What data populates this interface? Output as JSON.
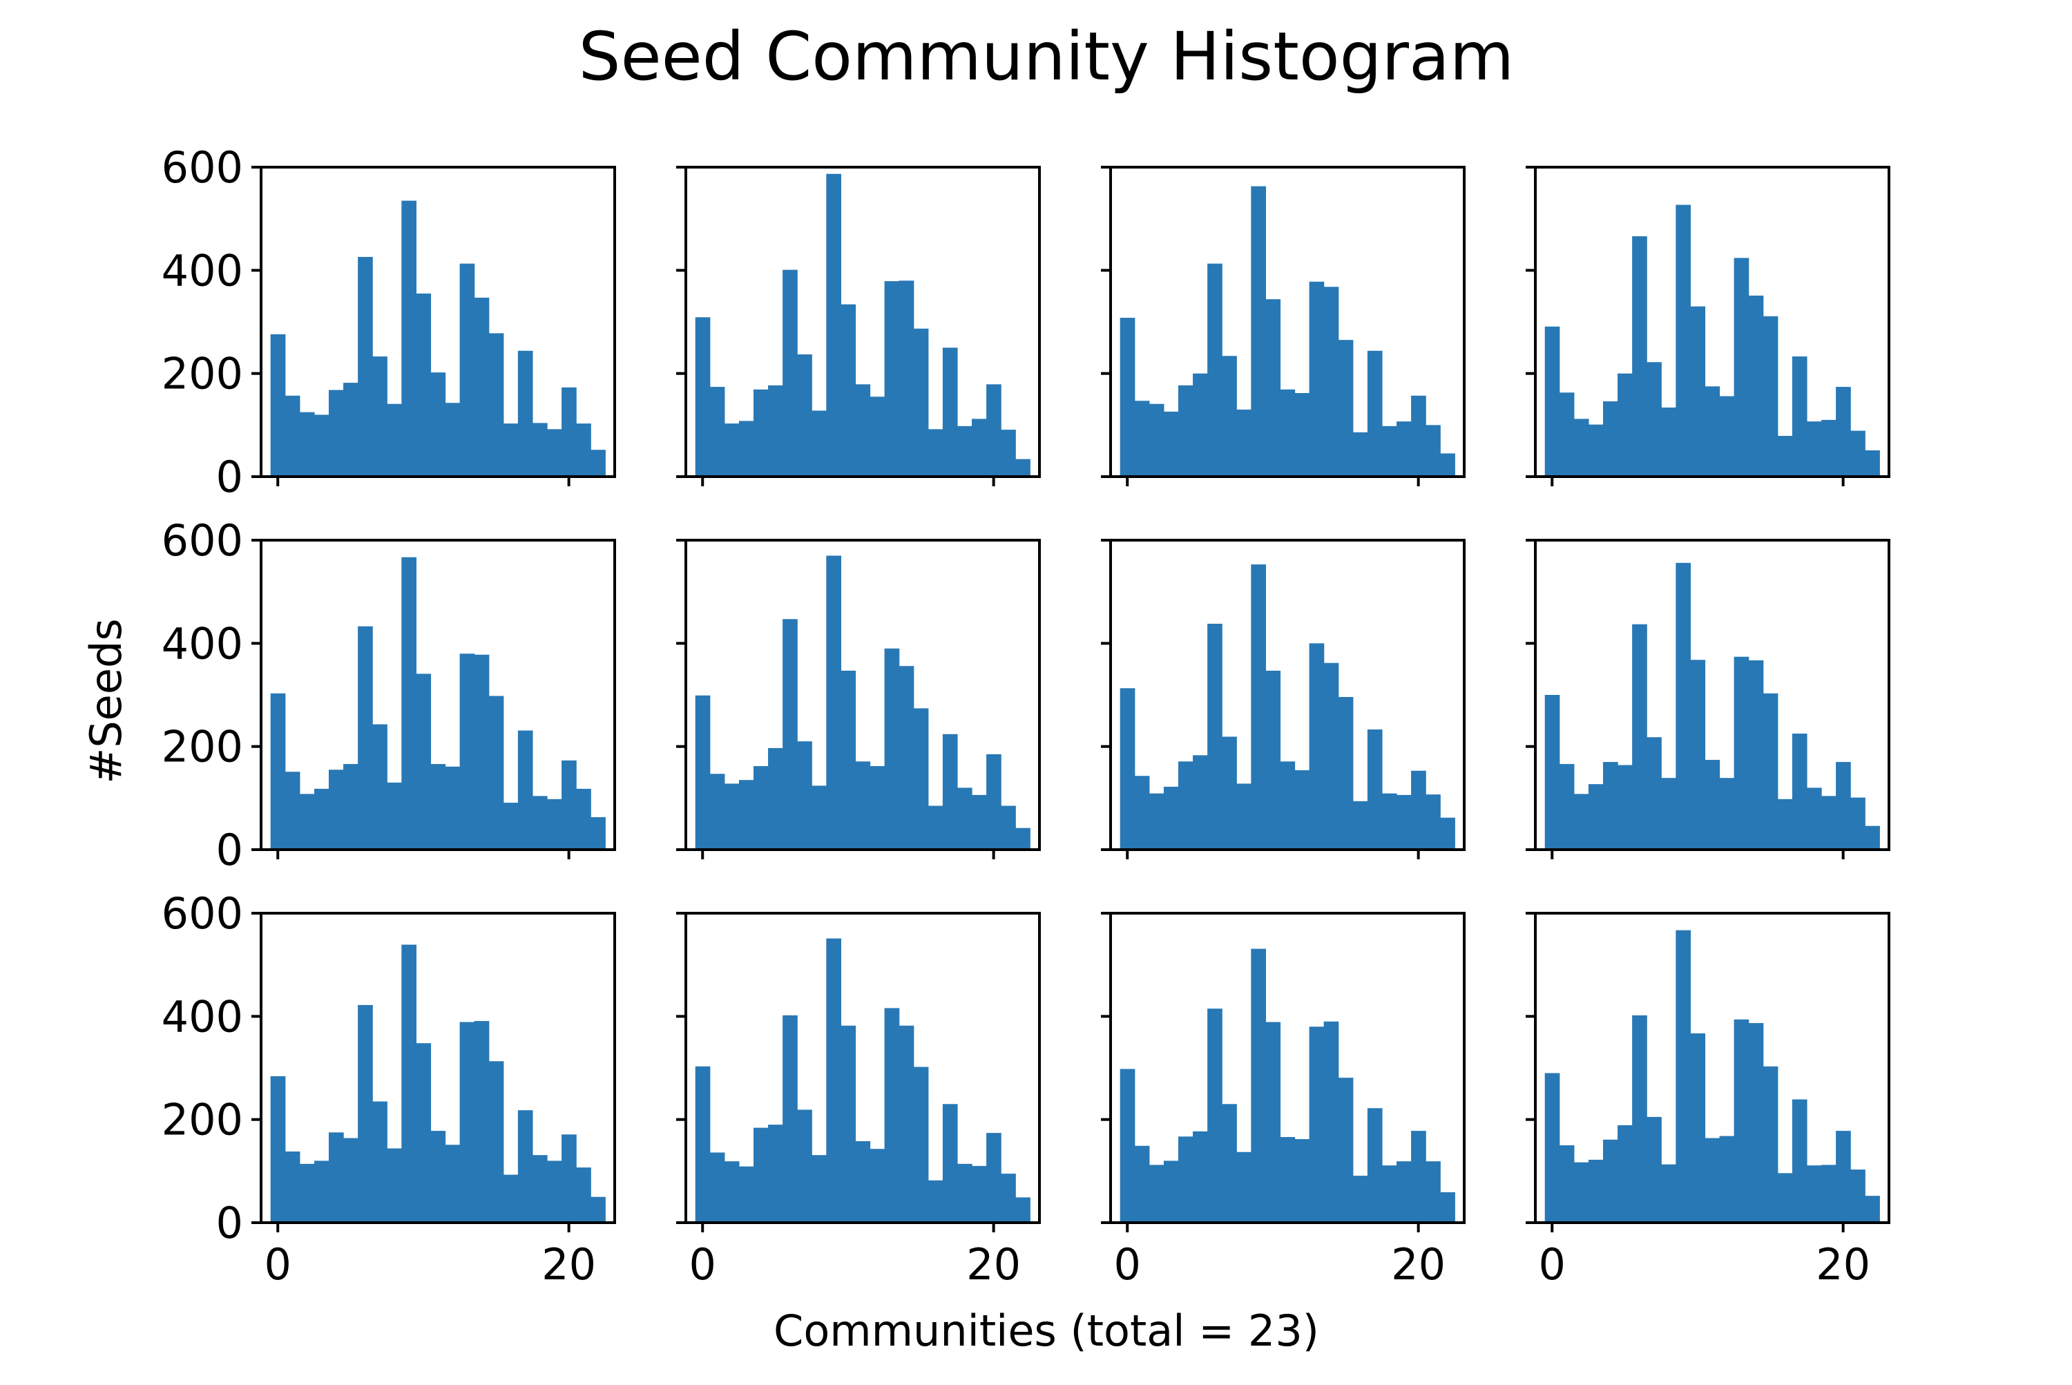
{
  "chart_data": {
    "type": "bar",
    "title": "Seed Community Histogram",
    "xlabel": "Communities (total = 23)",
    "ylabel": "#Seeds",
    "ylim": [
      0,
      600
    ],
    "xlim": [
      -1.15,
      23.15
    ],
    "yticks": [
      0,
      200,
      400,
      600
    ],
    "xticks": [
      0,
      20
    ],
    "bar_color": "#2878b5",
    "grid": false,
    "layout": {
      "rows": 3,
      "cols": 4,
      "sharex": true,
      "sharey": true
    },
    "categories": [
      0,
      1,
      2,
      3,
      4,
      5,
      6,
      7,
      8,
      9,
      10,
      11,
      12,
      13,
      14,
      15,
      16,
      17,
      18,
      19,
      20,
      21,
      22
    ],
    "panels": [
      {
        "values": [
          276,
          157,
          125,
          120,
          168,
          182,
          426,
          233,
          141,
          535,
          355,
          202,
          143,
          413,
          347,
          278,
          103,
          244,
          104,
          92,
          173,
          103,
          52
        ]
      },
      {
        "values": [
          309,
          174,
          103,
          108,
          169,
          177,
          401,
          237,
          128,
          587,
          334,
          179,
          155,
          379,
          380,
          287,
          92,
          250,
          98,
          112,
          179,
          91,
          34
        ]
      },
      {
        "values": [
          308,
          147,
          141,
          126,
          177,
          200,
          413,
          234,
          130,
          563,
          344,
          169,
          162,
          378,
          368,
          265,
          86,
          244,
          98,
          107,
          157,
          100,
          45
        ]
      },
      {
        "values": [
          291,
          163,
          112,
          101,
          146,
          200,
          466,
          222,
          134,
          527,
          330,
          175,
          156,
          424,
          351,
          311,
          79,
          233,
          107,
          110,
          174,
          89,
          51
        ]
      },
      {
        "values": [
          303,
          151,
          108,
          118,
          155,
          166,
          433,
          243,
          130,
          567,
          341,
          166,
          161,
          380,
          378,
          298,
          91,
          231,
          104,
          98,
          173,
          118,
          63
        ]
      },
      {
        "values": [
          299,
          147,
          128,
          135,
          162,
          197,
          447,
          210,
          124,
          570,
          347,
          171,
          162,
          390,
          356,
          274,
          85,
          224,
          120,
          106,
          185,
          85,
          42
        ]
      },
      {
        "values": [
          313,
          143,
          109,
          122,
          171,
          183,
          438,
          219,
          128,
          553,
          347,
          171,
          154,
          400,
          362,
          296,
          94,
          233,
          109,
          106,
          153,
          107,
          62
        ]
      },
      {
        "values": [
          300,
          166,
          108,
          127,
          170,
          164,
          437,
          218,
          139,
          556,
          368,
          174,
          139,
          374,
          367,
          303,
          98,
          225,
          120,
          104,
          170,
          101,
          46
        ]
      },
      {
        "values": [
          284,
          138,
          114,
          120,
          175,
          164,
          422,
          235,
          144,
          539,
          348,
          178,
          151,
          389,
          391,
          313,
          93,
          218,
          131,
          120,
          171,
          107,
          50
        ]
      },
      {
        "values": [
          303,
          136,
          119,
          109,
          184,
          190,
          402,
          219,
          131,
          551,
          382,
          158,
          143,
          416,
          382,
          302,
          82,
          230,
          114,
          110,
          174,
          95,
          49
        ]
      },
      {
        "values": [
          298,
          149,
          112,
          120,
          167,
          177,
          415,
          230,
          137,
          531,
          389,
          166,
          162,
          380,
          390,
          281,
          91,
          222,
          111,
          119,
          178,
          119,
          59
        ]
      },
      {
        "values": [
          290,
          150,
          117,
          122,
          161,
          189,
          402,
          205,
          113,
          567,
          367,
          164,
          168,
          394,
          387,
          303,
          96,
          239,
          111,
          112,
          178,
          103,
          52
        ]
      }
    ]
  }
}
